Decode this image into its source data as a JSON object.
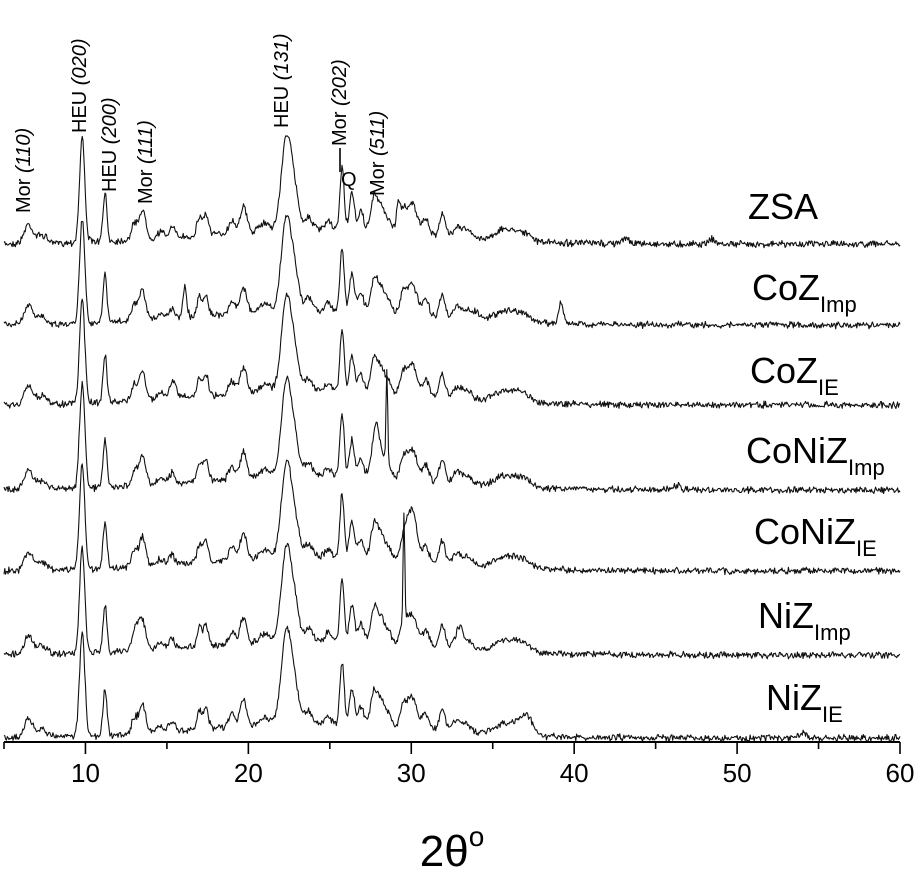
{
  "chart_data": {
    "type": "line",
    "xlabel": {
      "main": "2θ",
      "sup": "o"
    },
    "xlim": [
      5,
      60
    ],
    "x_ticks": [
      10,
      20,
      30,
      40,
      50,
      60
    ],
    "y_axis_visible": false,
    "grid": false,
    "legend": "none",
    "series": [
      {
        "id": "zsa",
        "name": "ZSA",
        "sub": ""
      },
      {
        "id": "coimp",
        "name": "CoZ",
        "sub": "Imp"
      },
      {
        "id": "coie",
        "name": "CoZ",
        "sub": "IE"
      },
      {
        "id": "coniimp",
        "name": "CoNiZ",
        "sub": "Imp"
      },
      {
        "id": "conie",
        "name": "CoNiZ",
        "sub": "IE"
      },
      {
        "id": "niimp",
        "name": "NiZ",
        "sub": "Imp"
      },
      {
        "id": "niie",
        "name": "NiZ",
        "sub": "IE"
      }
    ],
    "peak_annotations": [
      {
        "phase": "Mor",
        "hkl": "(110)",
        "x": 6.5
      },
      {
        "phase": "HEU",
        "hkl": "(020)",
        "x": 9.8
      },
      {
        "phase": "HEU",
        "hkl": "(200)",
        "x": 11.2
      },
      {
        "phase": "Mor",
        "hkl": "(111)",
        "x": 13.5
      },
      {
        "phase": "HEU",
        "hkl": "(131)",
        "x": 22.3
      },
      {
        "phase": "Mor",
        "hkl": "(202)",
        "x": 25.7
      },
      {
        "phase": "Q",
        "hkl": "",
        "x": 26.6
      },
      {
        "phase": "Mor",
        "hkl": "(511)",
        "x": 27.7
      }
    ]
  }
}
